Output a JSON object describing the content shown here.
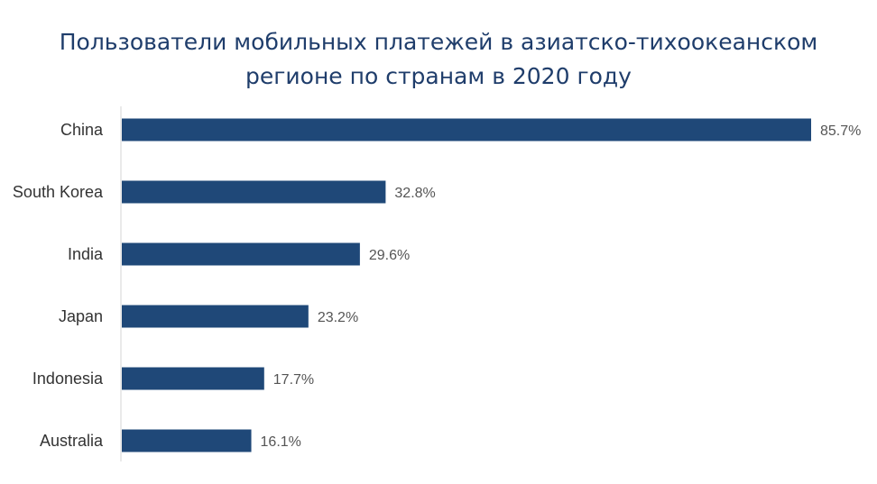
{
  "chart_data": {
    "type": "bar",
    "orientation": "horizontal",
    "title_lines": [
      "Пользователи мобильных платежей в азиатско-тихоокеанском",
      "регионе по странам в 2020 году"
    ],
    "categories": [
      "China",
      "South Korea",
      "India",
      "Japan",
      "Indonesia",
      "Australia"
    ],
    "values": [
      85.7,
      32.8,
      29.6,
      23.2,
      17.7,
      16.1
    ],
    "value_labels": [
      "85.7%",
      "32.8%",
      "29.6%",
      "23.2%",
      "17.7%",
      "16.1%"
    ],
    "unit": "%",
    "xlim": [
      0,
      85.7
    ],
    "grid": false,
    "legend": "none",
    "colors": {
      "bar": "#1f4878",
      "title": "#1f3d6b",
      "labels": "#333333",
      "value_labels": "#555555"
    }
  }
}
